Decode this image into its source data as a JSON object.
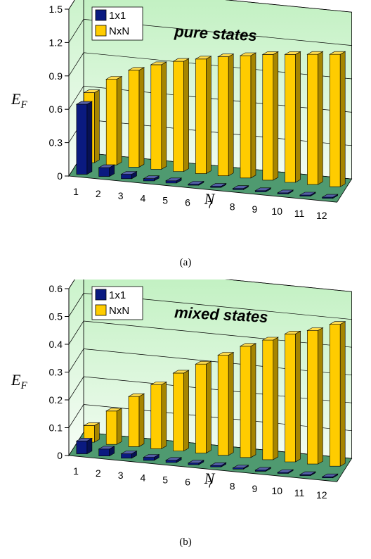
{
  "chart_data": [
    {
      "type": "bar",
      "panel_label": "(a)",
      "title": "pure states",
      "xlabel": "N",
      "ylabel": "E_F",
      "ylim": [
        0,
        1.5
      ],
      "yticks": [
        "0",
        "0.3",
        "0.6",
        "0.9",
        "1.2",
        "1.5"
      ],
      "categories": [
        "1",
        "2",
        "3",
        "4",
        "5",
        "6",
        "7",
        "8",
        "9",
        "10",
        "11",
        "12"
      ],
      "series": [
        {
          "name": "1x1",
          "color": "#0a1a80",
          "values": [
            0.63,
            0.08,
            0.04,
            0.02,
            0.02,
            0.01,
            0.01,
            0.01,
            0.01,
            0.01,
            0.01,
            0.01
          ]
        },
        {
          "name": "NxN",
          "color": "#ffcc00",
          "values": [
            0.63,
            0.77,
            0.87,
            0.94,
            0.99,
            1.03,
            1.07,
            1.1,
            1.13,
            1.15,
            1.17,
            1.19
          ]
        }
      ],
      "legend_position": "top-left",
      "grid": true
    },
    {
      "type": "bar",
      "panel_label": "(b)",
      "title": "mixed states",
      "xlabel": "N",
      "ylabel": "E_F",
      "ylim": [
        0,
        0.6
      ],
      "yticks": [
        "0",
        "0.1",
        "0.2",
        "0.3",
        "0.4",
        "0.5",
        "0.6"
      ],
      "categories": [
        "1",
        "2",
        "3",
        "4",
        "5",
        "6",
        "7",
        "8",
        "9",
        "10",
        "11",
        "12"
      ],
      "series": [
        {
          "name": "1x1",
          "color": "#0a1a80",
          "values": [
            0.046,
            0.025,
            0.016,
            0.011,
            0.008,
            0.006,
            0.005,
            0.004,
            0.004,
            0.003,
            0.003,
            0.003
          ]
        },
        {
          "name": "NxN",
          "color": "#ffcc00",
          "values": [
            0.06,
            0.12,
            0.18,
            0.23,
            0.28,
            0.32,
            0.36,
            0.4,
            0.43,
            0.46,
            0.48,
            0.51
          ]
        }
      ],
      "legend_position": "top-left",
      "grid": true
    }
  ]
}
